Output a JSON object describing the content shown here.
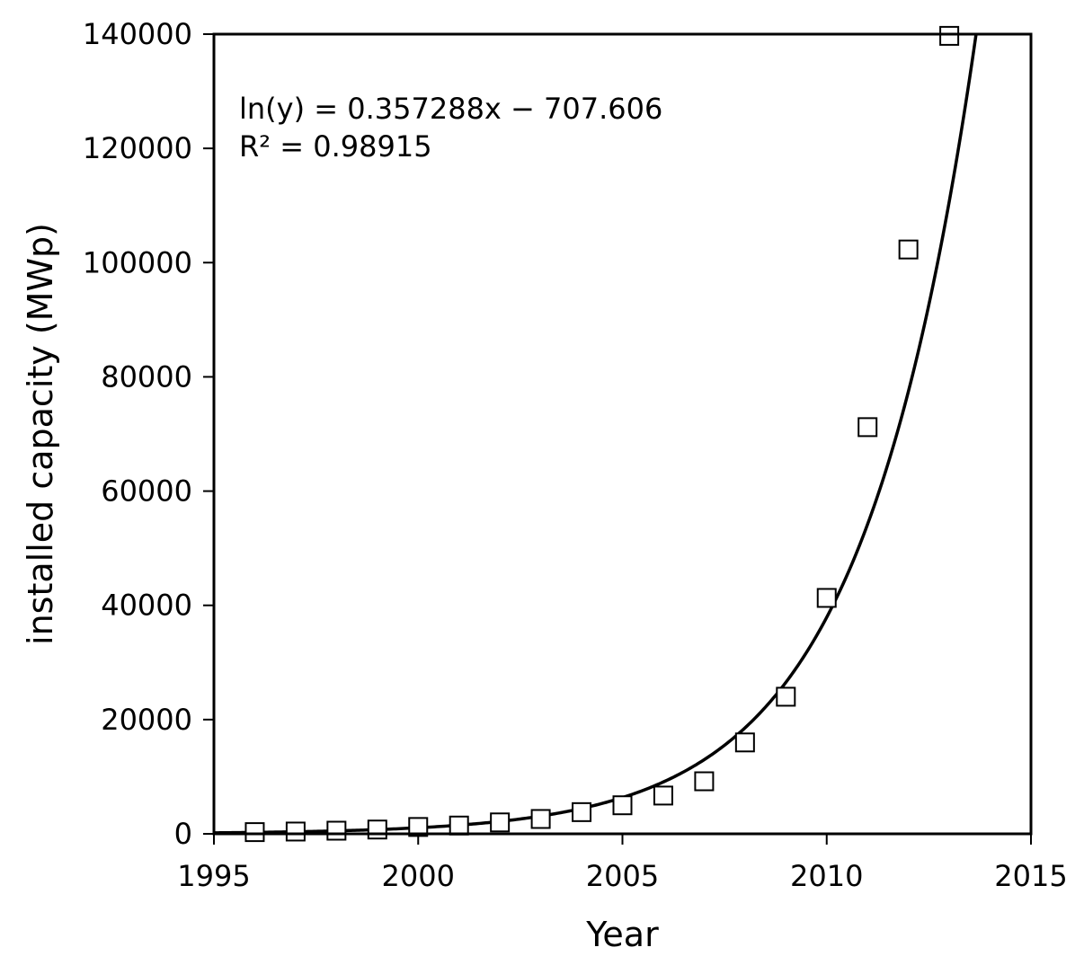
{
  "chart_data": {
    "type": "scatter",
    "title": "",
    "xlabel": "Year",
    "ylabel": "installed capacity (MWp)",
    "xlim": [
      1995,
      2015
    ],
    "ylim": [
      0,
      140000
    ],
    "xticks": [
      "1995",
      "2000",
      "2005",
      "2010",
      "2015"
    ],
    "yticks": [
      "0",
      "20000",
      "40000",
      "60000",
      "80000",
      "100000",
      "120000",
      "140000"
    ],
    "grid": false,
    "legend": "none",
    "marker": "open-square",
    "colors": {
      "marker_edge": "#000000",
      "marker_fill": "#ffffff",
      "fit_line": "#000000",
      "axes": "#000000"
    },
    "series": [
      {
        "x": [
          1996,
          1997,
          1998,
          1999,
          2000,
          2001,
          2002,
          2003,
          2004,
          2005,
          2006,
          2007,
          2008,
          2009,
          2010,
          2011,
          2012,
          2013
        ],
        "y": [
          300,
          400,
          550,
          750,
          1200,
          1450,
          2000,
          2600,
          3800,
          5000,
          6700,
          9200,
          16000,
          24000,
          41300,
          71200,
          102300,
          139700
        ]
      }
    ],
    "fit": {
      "model": "exponential",
      "slope": 0.357288,
      "intercept": -707.606,
      "r2": 0.98915
    },
    "annotations": [
      "ln(y) = 0.357288x − 707.606",
      "R² = 0.98915"
    ]
  }
}
